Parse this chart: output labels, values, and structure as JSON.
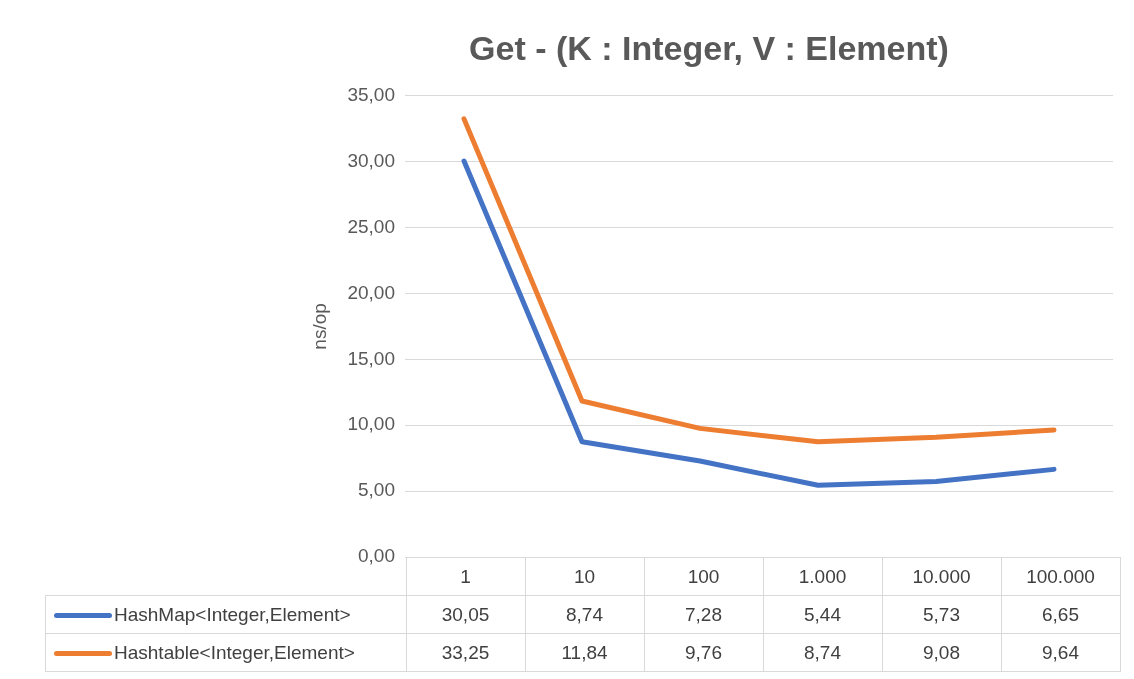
{
  "chart_data": {
    "type": "line",
    "title": "Get - (K : Integer, V : Element)",
    "ylabel": "ns/op",
    "categories": [
      "1",
      "10",
      "100",
      "1.000",
      "10.000",
      "100.000"
    ],
    "series": [
      {
        "name": "HashMap<Integer,Element>",
        "color": "#4472c4",
        "values": [
          30.05,
          8.74,
          7.28,
          5.44,
          5.73,
          6.65
        ],
        "value_labels": [
          "30,05",
          "8,74",
          "7,28",
          "5,44",
          "5,73",
          "6,65"
        ]
      },
      {
        "name": "Hashtable<Integer,Element>",
        "color": "#ed7d31",
        "values": [
          33.25,
          11.84,
          9.76,
          8.74,
          9.08,
          9.64
        ],
        "value_labels": [
          "33,25",
          "11,84",
          "9,76",
          "8,74",
          "9,08",
          "9,64"
        ]
      }
    ],
    "ylim": [
      0,
      35
    ],
    "yticks": [
      {
        "value": 0,
        "label": "0,00"
      },
      {
        "value": 5,
        "label": "5,00"
      },
      {
        "value": 10,
        "label": "10,00"
      },
      {
        "value": 15,
        "label": "15,00"
      },
      {
        "value": 20,
        "label": "20,00"
      },
      {
        "value": 25,
        "label": "25,00"
      },
      {
        "value": 30,
        "label": "30,00"
      },
      {
        "value": 35,
        "label": "35,00"
      }
    ],
    "grid": "y",
    "legend": "bottom",
    "marker": "none"
  }
}
